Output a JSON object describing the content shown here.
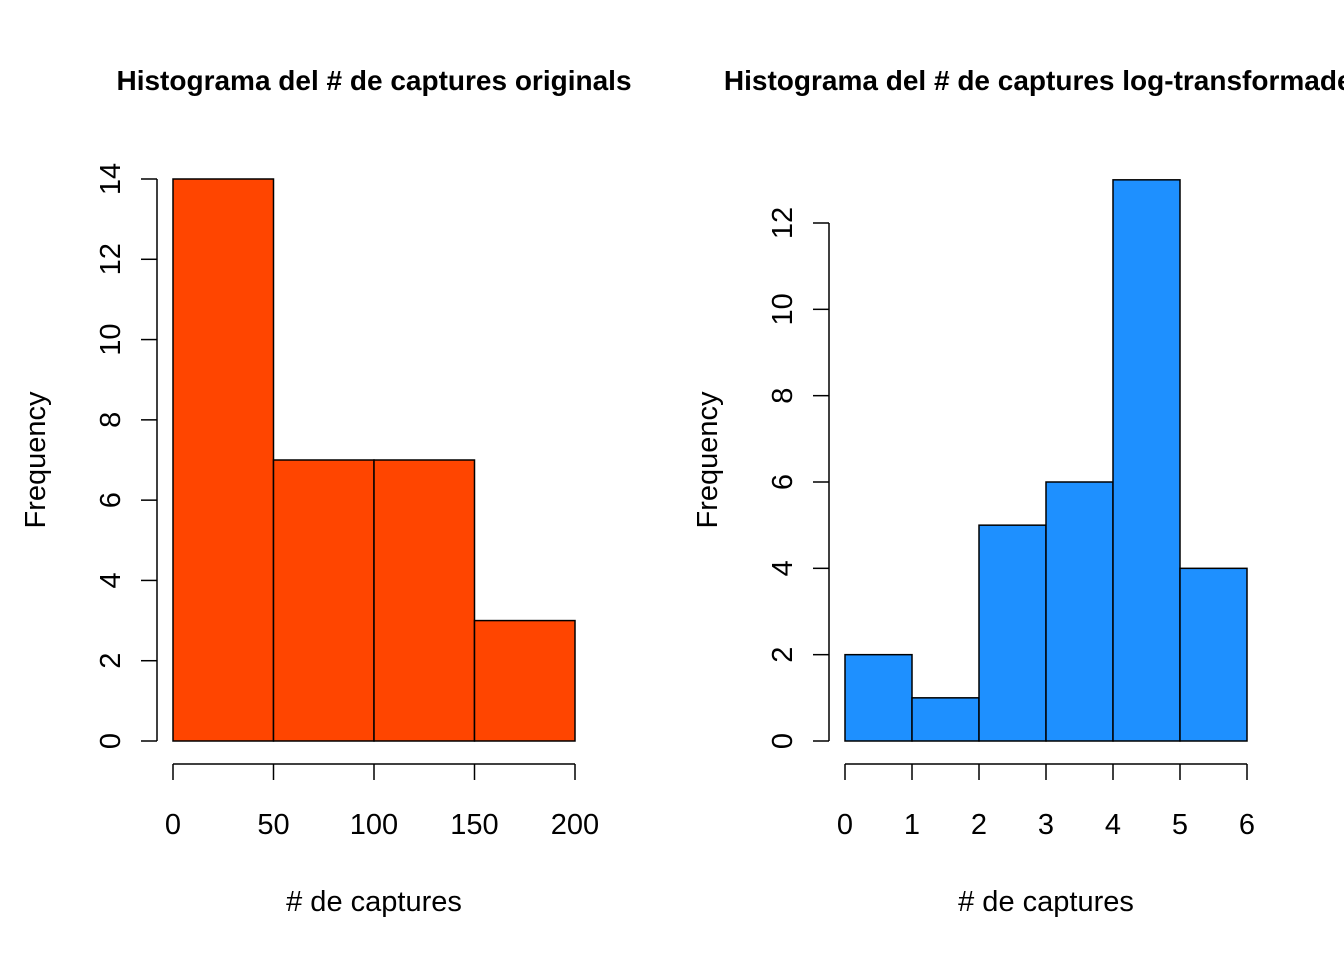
{
  "chart_data": [
    {
      "type": "bar",
      "title": "Histograma del # de captures originals",
      "xlabel": "# de captures",
      "ylabel": "Frequency",
      "bins": [
        [
          0,
          50
        ],
        [
          50,
          100
        ],
        [
          100,
          150
        ],
        [
          150,
          200
        ]
      ],
      "values": [
        14,
        7,
        7,
        3
      ],
      "xticks": [
        0,
        50,
        100,
        150,
        200
      ],
      "yticks": [
        0,
        2,
        4,
        6,
        8,
        10,
        12,
        14
      ],
      "xlim": [
        0,
        200
      ],
      "ylim": [
        0,
        14
      ],
      "color": "#FF4500",
      "grid": false
    },
    {
      "type": "bar",
      "title": "Histograma del # de captures log-transformades",
      "xlabel": "# de captures",
      "ylabel": "Frequency",
      "bins": [
        [
          0,
          1
        ],
        [
          1,
          2
        ],
        [
          2,
          3
        ],
        [
          3,
          4
        ],
        [
          4,
          5
        ],
        [
          5,
          6
        ]
      ],
      "values": [
        2,
        1,
        5,
        6,
        13,
        4
      ],
      "xticks": [
        0,
        1,
        2,
        3,
        4,
        5,
        6
      ],
      "yticks": [
        0,
        2,
        4,
        6,
        8,
        10,
        12
      ],
      "xlim": [
        0,
        6
      ],
      "ylim": [
        0,
        13
      ],
      "color": "#1E90FF",
      "grid": false
    }
  ]
}
